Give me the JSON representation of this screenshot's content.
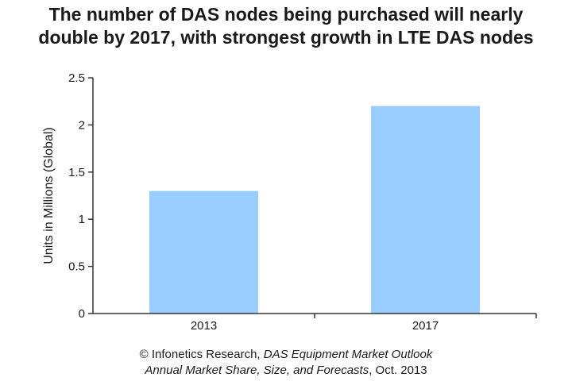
{
  "title_line_1": "The number of DAS nodes being purchased will nearly",
  "title_line_2": "double by 2017, with strongest growth in LTE DAS nodes",
  "source": {
    "line_1_prefix": "© Infonetics Research, ",
    "line_1_italic": "DAS Equipment Market Outlook",
    "line_2_italic": "Annual Market Share, Size, and Forecasts",
    "line_2_suffix": ", Oct. 2013"
  },
  "colors": {
    "bar": "#99ccff",
    "axis": "#333333",
    "text": "#1a1a1a"
  },
  "chart_data": {
    "type": "bar",
    "title": "The number of DAS nodes being purchased will nearly double by 2017, with strongest growth in LTE DAS nodes",
    "categories": [
      "2013",
      "2017"
    ],
    "values": [
      1.3,
      2.2
    ],
    "xlabel": "",
    "ylabel": "Units in Millions (Global)",
    "ylim": [
      0,
      2.5
    ],
    "yticks": [
      0,
      0.5,
      1,
      1.5,
      2,
      2.5
    ],
    "ytick_labels": [
      "0",
      "0.5",
      "1",
      "1.5",
      "2",
      "2.5"
    ],
    "grid": false,
    "legend": "none"
  }
}
